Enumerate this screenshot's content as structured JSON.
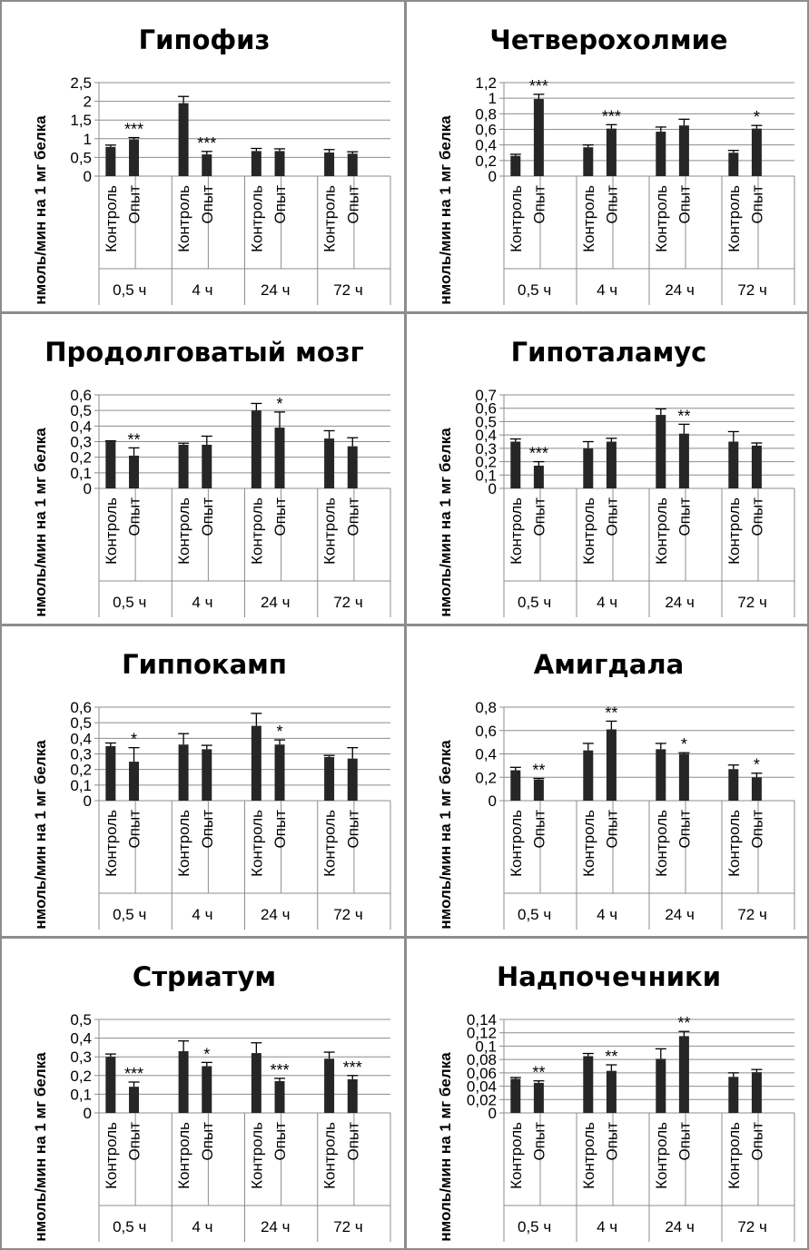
{
  "colors": {
    "bar": "#262626",
    "gridline": "#8c8c8c",
    "border": "#8c8c8c"
  },
  "y_axis_label": "нмоль/мин на 1 мг белка",
  "chart_data": [
    {
      "type": "bar",
      "title": "Гипофиз",
      "ylabel": "нмоль/мин на 1 мг белка",
      "ylim": [
        0,
        2.5
      ],
      "yticks": [
        "0",
        "0,5",
        "1",
        "1,5",
        "2",
        "2,5"
      ],
      "groups": [
        "0,5 ч",
        "4 ч",
        "24 ч",
        "72 ч"
      ],
      "categories": [
        "Контроль",
        "Опыт"
      ],
      "values": [
        [
          0.78,
          0.98
        ],
        [
          1.95,
          0.58
        ],
        [
          0.67,
          0.67
        ],
        [
          0.63,
          0.6
        ]
      ],
      "errors": [
        [
          0.05,
          0.05
        ],
        [
          0.18,
          0.08
        ],
        [
          0.07,
          0.06
        ],
        [
          0.08,
          0.05
        ]
      ],
      "significance": [
        [
          "",
          "***"
        ],
        [
          "",
          "***"
        ],
        [
          "",
          ""
        ],
        [
          "",
          ""
        ]
      ]
    },
    {
      "type": "bar",
      "title": "Четверохолмие",
      "ylabel": "нмоль/мин на 1 мг белка",
      "ylim": [
        0,
        1.2
      ],
      "yticks": [
        "0",
        "0,2",
        "0,4",
        "0,6",
        "0,8",
        "1",
        "1,2"
      ],
      "groups": [
        "0,5 ч",
        "4 ч",
        "24 ч",
        "72 ч"
      ],
      "categories": [
        "Контроль",
        "Опыт"
      ],
      "values": [
        [
          0.26,
          0.99
        ],
        [
          0.37,
          0.61
        ],
        [
          0.57,
          0.65
        ],
        [
          0.3,
          0.61
        ]
      ],
      "errors": [
        [
          0.02,
          0.06
        ],
        [
          0.03,
          0.05
        ],
        [
          0.06,
          0.08
        ],
        [
          0.03,
          0.04
        ]
      ],
      "significance": [
        [
          "",
          "***"
        ],
        [
          "",
          "***"
        ],
        [
          "",
          ""
        ],
        [
          "",
          "*"
        ]
      ]
    },
    {
      "type": "bar",
      "title": "Продолговатый мозг",
      "ylabel": "нмоль/мин на 1 мг белка",
      "ylim": [
        0,
        0.6
      ],
      "yticks": [
        "0",
        "0,1",
        "0,2",
        "0,3",
        "0,4",
        "0,5",
        "0,6"
      ],
      "groups": [
        "0,5 ч",
        "4 ч",
        "24 ч",
        "72 ч"
      ],
      "categories": [
        "Контроль",
        "Опыт"
      ],
      "values": [
        [
          0.3,
          0.21
        ],
        [
          0.28,
          0.28
        ],
        [
          0.5,
          0.39
        ],
        [
          0.32,
          0.27
        ]
      ],
      "errors": [
        [
          0.005,
          0.05
        ],
        [
          0.01,
          0.055
        ],
        [
          0.045,
          0.1
        ],
        [
          0.05,
          0.055
        ]
      ],
      "significance": [
        [
          "",
          "**"
        ],
        [
          "",
          ""
        ],
        [
          "",
          "*"
        ],
        [
          "",
          ""
        ]
      ]
    },
    {
      "type": "bar",
      "title": "Гипоталамус",
      "ylabel": "нмоль/мин на 1 мг белка",
      "ylim": [
        0,
        0.7
      ],
      "yticks": [
        "0",
        "0,1",
        "0,2",
        "0,3",
        "0,4",
        "0,5",
        "0,6",
        "0,7"
      ],
      "groups": [
        "0,5 ч",
        "4 ч",
        "24 ч",
        "72 ч"
      ],
      "categories": [
        "Контроль",
        "Опыт"
      ],
      "values": [
        [
          0.35,
          0.17
        ],
        [
          0.3,
          0.35
        ],
        [
          0.55,
          0.41
        ],
        [
          0.35,
          0.32
        ]
      ],
      "errors": [
        [
          0.02,
          0.03
        ],
        [
          0.05,
          0.025
        ],
        [
          0.045,
          0.07
        ],
        [
          0.075,
          0.02
        ]
      ],
      "significance": [
        [
          "",
          "***"
        ],
        [
          "",
          ""
        ],
        [
          "",
          "**"
        ],
        [
          "",
          ""
        ]
      ]
    },
    {
      "type": "bar",
      "title": "Гиппокамп",
      "ylabel": "нмоль/мин на 1 мг белка",
      "ylim": [
        0,
        0.6
      ],
      "yticks": [
        "0",
        "0,1",
        "0,2",
        "0,3",
        "0,4",
        "0,5",
        "0,6"
      ],
      "groups": [
        "0,5 ч",
        "4 ч",
        "24 ч",
        "72 ч"
      ],
      "categories": [
        "Контроль",
        "Опыт"
      ],
      "values": [
        [
          0.35,
          0.25
        ],
        [
          0.36,
          0.33
        ],
        [
          0.48,
          0.36
        ],
        [
          0.28,
          0.27
        ]
      ],
      "errors": [
        [
          0.02,
          0.09
        ],
        [
          0.07,
          0.025
        ],
        [
          0.08,
          0.03
        ],
        [
          0.01,
          0.07
        ]
      ],
      "significance": [
        [
          "",
          "*"
        ],
        [
          "",
          ""
        ],
        [
          "",
          "*"
        ],
        [
          "",
          ""
        ]
      ]
    },
    {
      "type": "bar",
      "title": "Амигдала",
      "ylabel": "нмоль/мин на 1 мг белка",
      "ylim": [
        0,
        0.8
      ],
      "yticks": [
        "0",
        "0,2",
        "0,4",
        "0,6",
        "0,8"
      ],
      "groups": [
        "0,5 ч",
        "4 ч",
        "24 ч",
        "72 ч"
      ],
      "categories": [
        "Контроль",
        "Опыт"
      ],
      "values": [
        [
          0.26,
          0.18
        ],
        [
          0.43,
          0.61
        ],
        [
          0.44,
          0.4
        ],
        [
          0.27,
          0.2
        ]
      ],
      "errors": [
        [
          0.025,
          0.01
        ],
        [
          0.06,
          0.07
        ],
        [
          0.05,
          0.01
        ],
        [
          0.035,
          0.035
        ]
      ],
      "significance": [
        [
          "",
          "**"
        ],
        [
          "",
          "**"
        ],
        [
          "",
          "*"
        ],
        [
          "",
          "*"
        ]
      ]
    },
    {
      "type": "bar",
      "title": "Стриатум",
      "ylabel": "нмоль/мин на 1 мг белка",
      "ylim": [
        0,
        0.5
      ],
      "yticks": [
        "0",
        "0,1",
        "0,2",
        "0,3",
        "0,4",
        "0,5"
      ],
      "groups": [
        "0,5 ч",
        "4 ч",
        "24 ч",
        "72 ч"
      ],
      "categories": [
        "Контроль",
        "Опыт"
      ],
      "values": [
        [
          0.3,
          0.14
        ],
        [
          0.33,
          0.25
        ],
        [
          0.32,
          0.17
        ],
        [
          0.29,
          0.18
        ]
      ],
      "errors": [
        [
          0.015,
          0.025
        ],
        [
          0.055,
          0.02
        ],
        [
          0.055,
          0.015
        ],
        [
          0.035,
          0.02
        ]
      ],
      "significance": [
        [
          "",
          "***"
        ],
        [
          "",
          "*"
        ],
        [
          "",
          "***"
        ],
        [
          "",
          "***"
        ]
      ]
    },
    {
      "type": "bar",
      "title": "Надпочечники",
      "ylabel": "нмоль/мин на 1 мг белка",
      "ylim": [
        0,
        0.14
      ],
      "yticks": [
        "0",
        "0,02",
        "0,04",
        "0,06",
        "0,08",
        "0,1",
        "0,12",
        "0,14"
      ],
      "groups": [
        "0,5 ч",
        "4 ч",
        "24 ч",
        "72 ч"
      ],
      "categories": [
        "Контроль",
        "Опыт"
      ],
      "values": [
        [
          0.051,
          0.045
        ],
        [
          0.085,
          0.063
        ],
        [
          0.081,
          0.115
        ],
        [
          0.054,
          0.061
        ]
      ],
      "errors": [
        [
          0.002,
          0.003
        ],
        [
          0.004,
          0.009
        ],
        [
          0.015,
          0.007
        ],
        [
          0.006,
          0.004
        ]
      ],
      "significance": [
        [
          "",
          "**"
        ],
        [
          "",
          "**"
        ],
        [
          "",
          "**"
        ],
        [
          "",
          ""
        ]
      ]
    }
  ]
}
